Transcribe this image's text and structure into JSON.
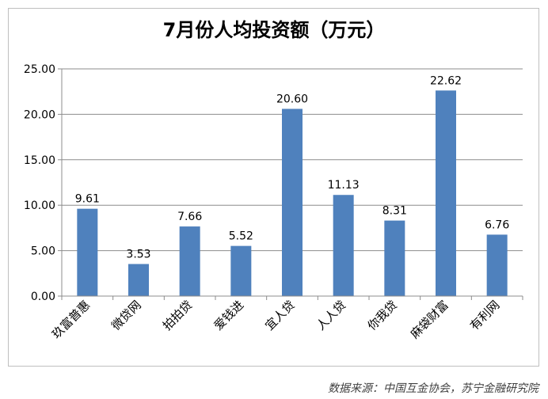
{
  "chart_data": {
    "type": "bar",
    "title": "7月份人均投资额（万元）",
    "categories": [
      "玖富普惠",
      "微贷网",
      "拍拍贷",
      "爱钱进",
      "宜人贷",
      "人人贷",
      "你我贷",
      "麻袋财富",
      "有利网"
    ],
    "values": [
      9.61,
      3.53,
      7.66,
      5.52,
      20.6,
      11.13,
      8.31,
      22.62,
      6.76
    ],
    "value_labels": [
      "9.61",
      "3.53",
      "7.66",
      "5.52",
      "20.60",
      "11.13",
      "8.31",
      "22.62",
      "6.76"
    ],
    "y_ticks": [
      "0.00",
      "5.00",
      "10.00",
      "15.00",
      "20.00",
      "25.00"
    ],
    "ylim": [
      0,
      25
    ],
    "grid": true,
    "legend": "none",
    "bar_color": "#4f81bd",
    "xlabel": "",
    "ylabel": ""
  },
  "source": "数据来源：中国互金协会，苏宁金融研究院"
}
